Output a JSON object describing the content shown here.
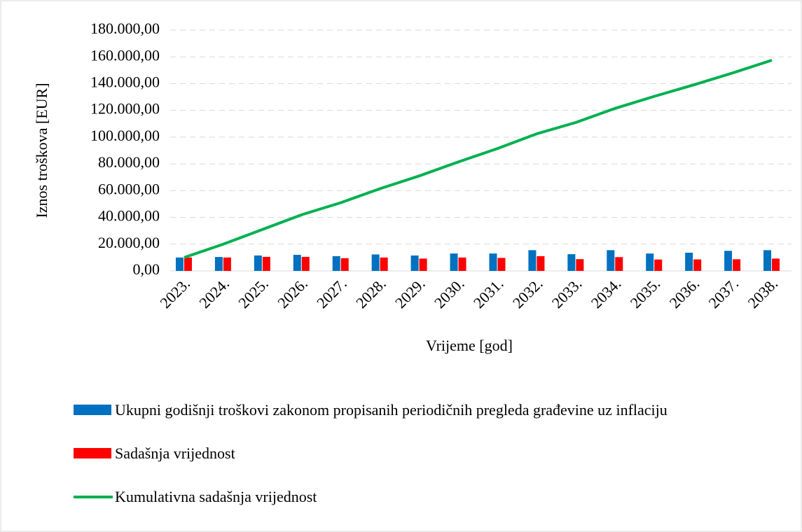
{
  "chart_data": {
    "type": "bar_line",
    "y_label": "Iznos troškova [EUR]",
    "x_label": "Vrijeme [god]",
    "categories": [
      "2023.",
      "2024.",
      "2025.",
      "2026.",
      "2027.",
      "2028.",
      "2029.",
      "2030.",
      "2031.",
      "2032.",
      "2033.",
      "2034.",
      "2035.",
      "2036.",
      "2037.",
      "2038."
    ],
    "series": [
      {
        "name": "Ukupni godišnji troškovi zakonom propisanih periodičnih pregleda građevine uz inflaciju",
        "color": "#0070c0",
        "kind": "bar",
        "values": [
          10000,
          10400,
          11500,
          12000,
          11000,
          12300,
          11500,
          13000,
          13000,
          15500,
          12500,
          15500,
          13000,
          13600,
          15000,
          15500
        ]
      },
      {
        "name": "Sadašnja vrijednost",
        "color": "#ff0000",
        "kind": "bar",
        "values": [
          10000,
          10000,
          10500,
          10500,
          9500,
          10000,
          9200,
          10000,
          9700,
          11000,
          8800,
          10300,
          8500,
          8600,
          8700,
          9200
        ]
      },
      {
        "name": "Kumulativna sadašnja vrijednost",
        "color": "#00b050",
        "kind": "line",
        "values": [
          10000,
          20000,
          31000,
          42000,
          51000,
          61500,
          71000,
          81500,
          91500,
          102500,
          111000,
          121500,
          130500,
          139000,
          148000,
          157500
        ]
      }
    ],
    "ylim": [
      0,
      180000
    ],
    "yticks": [
      {
        "value": 0,
        "label": "0,00"
      },
      {
        "value": 20000,
        "label": "20.000,00"
      },
      {
        "value": 40000,
        "label": "40.000,00"
      },
      {
        "value": 60000,
        "label": "60.000,00"
      },
      {
        "value": 80000,
        "label": "80.000,00"
      },
      {
        "value": 100000,
        "label": "100.000,00"
      },
      {
        "value": 120000,
        "label": "120.000,00"
      },
      {
        "value": 140000,
        "label": "140.000,00"
      },
      {
        "value": 160000,
        "label": "160.000,00"
      },
      {
        "value": 180000,
        "label": "180.000,00"
      }
    ],
    "grid": true,
    "legend": "bottom"
  }
}
